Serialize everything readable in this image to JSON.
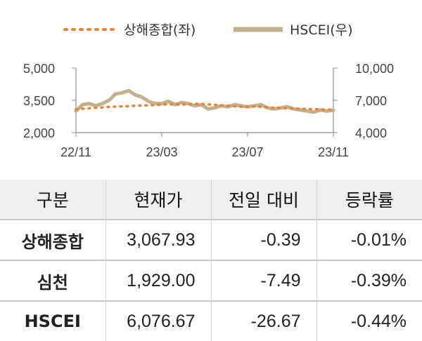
{
  "chart_data": {
    "type": "line",
    "legend": [
      "상해종합(좌)",
      "HSCEI(우)"
    ],
    "x_ticks": [
      "22/11",
      "23/03",
      "23/07",
      "23/11"
    ],
    "left_axis": {
      "ticks": [
        "5,000",
        "3,500",
        "2,000"
      ],
      "range": [
        2000,
        5000
      ]
    },
    "right_axis": {
      "ticks": [
        "10,000",
        "7,000",
        "4,000"
      ],
      "range": [
        4000,
        10000
      ]
    },
    "series": [
      {
        "name": "상해종합(좌)",
        "axis": "left",
        "color": "#e8853a",
        "style": "dotted",
        "values": [
          3090,
          3110,
          3130,
          3150,
          3170,
          3200,
          3210,
          3220,
          3230,
          3250,
          3260,
          3270,
          3280,
          3300,
          3320,
          3310,
          3300,
          3320,
          3340,
          3330,
          3310,
          3290,
          3270,
          3250,
          3230,
          3200,
          3210,
          3220,
          3200,
          3180,
          3150,
          3140,
          3130,
          3120,
          3110,
          3100,
          3090,
          3080,
          3070,
          3067.93
        ]
      },
      {
        "name": "HSCEI(우)",
        "axis": "right",
        "color": "#c2b08e",
        "style": "solid",
        "values": [
          6000,
          6600,
          6700,
          6500,
          6700,
          7000,
          7600,
          7700,
          7900,
          7500,
          7300,
          6900,
          6700,
          6700,
          6900,
          6600,
          6800,
          6700,
          6500,
          6600,
          6200,
          6300,
          6500,
          6400,
          6600,
          6500,
          6400,
          6500,
          6600,
          6300,
          6200,
          6300,
          6400,
          6200,
          6100,
          6000,
          5900,
          6100,
          6000,
          6076.67
        ]
      }
    ]
  },
  "table": {
    "headers": [
      "구분",
      "현재가",
      "전일 대비",
      "등락률"
    ],
    "rows": [
      {
        "name": "상해종합",
        "price": "3,067.93",
        "change": "-0.39",
        "rate": "-0.01%"
      },
      {
        "name": "심천",
        "price": "1,929.00",
        "change": "-7.49",
        "rate": "-0.39%"
      },
      {
        "name": "HSCEI",
        "price": "6,076.67",
        "change": "-26.67",
        "rate": "-0.44%"
      }
    ]
  }
}
